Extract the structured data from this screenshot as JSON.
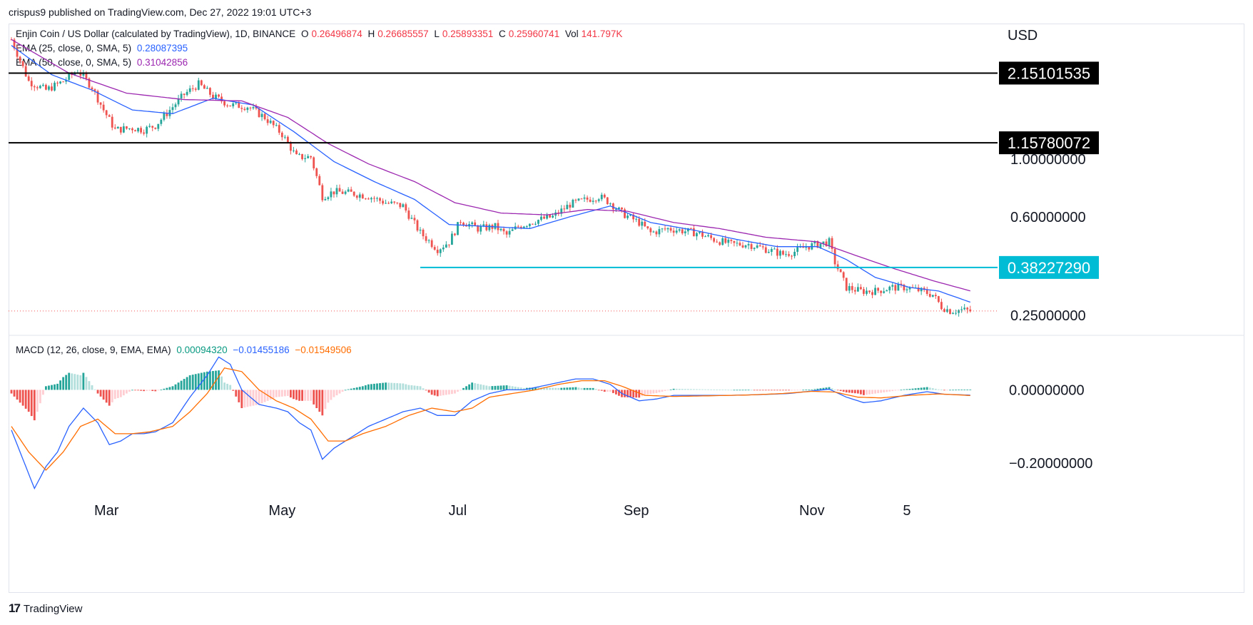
{
  "header": {
    "published": "crispus9 published on TradingView.com, Dec 27, 2022 19:01 UTC+3"
  },
  "footer": {
    "brand": "TradingView",
    "logo_icon": "tradingview-logo-icon"
  },
  "legend": {
    "symbol": "Enjin Coin / US Dollar (calculated by TradingView), 1D, BINANCE",
    "o_label": "O",
    "o_value": "0.26496874",
    "h_label": "H",
    "h_value": "0.26685557",
    "l_label": "L",
    "l_value": "0.25893351",
    "c_label": "C",
    "c_value": "0.25960741",
    "vol_label": "Vol",
    "vol_value": "141.797K",
    "ema25_label": "EMA (25, close, 0, SMA, 5)",
    "ema25_value": "0.28087395",
    "ema50_label": "EMA (50, close, 0, SMA, 5)",
    "ema50_value": "0.31042856",
    "macd_label": "MACD (12, 26, close, 9, EMA, EMA)",
    "macd_hist_value": "0.00094320",
    "macd_value": "−0.01455186",
    "macd_signal_value": "−0.01549506"
  },
  "colors": {
    "up": "#26a69a",
    "down": "#ef5350",
    "ema25": "#2962ff",
    "ema50": "#9c27b0",
    "macd": "#2962ff",
    "signal": "#ff6d00",
    "support": "#00bcd4"
  },
  "chart_data": [
    {
      "type": "candlestick",
      "title": "Enjin Coin / US Dollar (calculated by TradingView), 1D, BINANCE",
      "currency": "USD",
      "x_ticks": [
        "Mar",
        "May",
        "Jul",
        "Sep",
        "Nov",
        "5"
      ],
      "x_tick_days": [
        33,
        94,
        155,
        217,
        278,
        311
      ],
      "y_scale": "log",
      "y_ticks": [
        "0.25000000",
        "0.60000000",
        "1.00000000"
      ],
      "y_tick_values": [
        0.25,
        0.6,
        1.0
      ],
      "price_lines": [
        {
          "value": 2.15101535,
          "label": "2.15101535",
          "color": "#000000"
        },
        {
          "value": 1.15780072,
          "label": "1.15780072",
          "color": "#000000"
        },
        {
          "value": 0.3822729,
          "label": "0.38227290",
          "color": "#00bcd4",
          "start_day": 142
        }
      ],
      "current_price": 0.25960741,
      "ema25_last": 0.28087395,
      "ema50_last": 0.31042856,
      "close_anchors": [
        [
          0,
          2.9
        ],
        [
          6,
          2.0
        ],
        [
          12,
          1.85
        ],
        [
          18,
          2.0
        ],
        [
          23,
          2.2
        ],
        [
          28,
          1.9
        ],
        [
          32,
          1.55
        ],
        [
          36,
          1.3
        ],
        [
          42,
          1.32
        ],
        [
          46,
          1.3
        ],
        [
          50,
          1.35
        ],
        [
          55,
          1.55
        ],
        [
          60,
          1.78
        ],
        [
          65,
          1.95
        ],
        [
          70,
          1.75
        ],
        [
          76,
          1.62
        ],
        [
          82,
          1.6
        ],
        [
          88,
          1.45
        ],
        [
          94,
          1.25
        ],
        [
          99,
          1.02
        ],
        [
          104,
          1.02
        ],
        [
          108,
          0.72
        ],
        [
          112,
          0.75
        ],
        [
          118,
          0.74
        ],
        [
          124,
          0.72
        ],
        [
          130,
          0.68
        ],
        [
          136,
          0.66
        ],
        [
          142,
          0.52
        ],
        [
          148,
          0.45
        ],
        [
          152,
          0.48
        ],
        [
          156,
          0.58
        ],
        [
          162,
          0.54
        ],
        [
          168,
          0.55
        ],
        [
          172,
          0.51
        ],
        [
          176,
          0.55
        ],
        [
          182,
          0.58
        ],
        [
          188,
          0.6
        ],
        [
          194,
          0.67
        ],
        [
          200,
          0.7
        ],
        [
          204,
          0.72
        ],
        [
          208,
          0.68
        ],
        [
          212,
          0.62
        ],
        [
          218,
          0.57
        ],
        [
          222,
          0.52
        ],
        [
          228,
          0.54
        ],
        [
          233,
          0.53
        ],
        [
          238,
          0.52
        ],
        [
          244,
          0.49
        ],
        [
          250,
          0.47
        ],
        [
          256,
          0.47
        ],
        [
          262,
          0.45
        ],
        [
          268,
          0.43
        ],
        [
          272,
          0.44
        ],
        [
          276,
          0.46
        ],
        [
          280,
          0.47
        ],
        [
          284,
          0.48
        ],
        [
          286,
          0.4
        ],
        [
          290,
          0.32
        ],
        [
          295,
          0.31
        ],
        [
          300,
          0.31
        ],
        [
          306,
          0.32
        ],
        [
          311,
          0.32
        ],
        [
          316,
          0.31
        ],
        [
          320,
          0.3
        ],
        [
          323,
          0.27
        ],
        [
          326,
          0.26
        ],
        [
          330,
          0.262
        ],
        [
          333,
          0.2596
        ]
      ],
      "ema25_anchors": [
        [
          0,
          2.75
        ],
        [
          14,
          2.12
        ],
        [
          28,
          1.85
        ],
        [
          42,
          1.55
        ],
        [
          56,
          1.5
        ],
        [
          70,
          1.72
        ],
        [
          84,
          1.62
        ],
        [
          98,
          1.28
        ],
        [
          112,
          0.98
        ],
        [
          126,
          0.82
        ],
        [
          140,
          0.7
        ],
        [
          152,
          0.56
        ],
        [
          166,
          0.55
        ],
        [
          180,
          0.54
        ],
        [
          194,
          0.6
        ],
        [
          208,
          0.66
        ],
        [
          222,
          0.57
        ],
        [
          238,
          0.53
        ],
        [
          252,
          0.49
        ],
        [
          266,
          0.46
        ],
        [
          280,
          0.46
        ],
        [
          290,
          0.41
        ],
        [
          300,
          0.35
        ],
        [
          312,
          0.32
        ],
        [
          322,
          0.31
        ],
        [
          333,
          0.28087395
        ]
      ],
      "ema50_anchors": [
        [
          0,
          2.9
        ],
        [
          20,
          2.15
        ],
        [
          40,
          1.8
        ],
        [
          60,
          1.7
        ],
        [
          80,
          1.68
        ],
        [
          96,
          1.45
        ],
        [
          110,
          1.15
        ],
        [
          124,
          0.96
        ],
        [
          140,
          0.82
        ],
        [
          154,
          0.68
        ],
        [
          170,
          0.62
        ],
        [
          186,
          0.61
        ],
        [
          200,
          0.64
        ],
        [
          214,
          0.63
        ],
        [
          230,
          0.57
        ],
        [
          246,
          0.54
        ],
        [
          262,
          0.5
        ],
        [
          280,
          0.48
        ],
        [
          292,
          0.43
        ],
        [
          306,
          0.38
        ],
        [
          320,
          0.34
        ],
        [
          333,
          0.31042856
        ]
      ]
    },
    {
      "type": "histogram+line",
      "title": "MACD (12, 26, close, 9, EMA, EMA)",
      "y_ticks": [
        "0.00000000",
        "−0.20000000"
      ],
      "y_tick_values": [
        0.0,
        -0.2
      ],
      "macd_anchors": [
        [
          0,
          -0.11
        ],
        [
          4,
          -0.19
        ],
        [
          8,
          -0.27
        ],
        [
          12,
          -0.21
        ],
        [
          16,
          -0.17
        ],
        [
          20,
          -0.1
        ],
        [
          25,
          -0.05
        ],
        [
          30,
          -0.09
        ],
        [
          34,
          -0.15
        ],
        [
          38,
          -0.14
        ],
        [
          42,
          -0.12
        ],
        [
          46,
          -0.12
        ],
        [
          50,
          -0.115
        ],
        [
          56,
          -0.09
        ],
        [
          62,
          -0.02
        ],
        [
          68,
          0.04
        ],
        [
          72,
          0.09
        ],
        [
          76,
          0.07
        ],
        [
          80,
          0.0
        ],
        [
          86,
          -0.04
        ],
        [
          92,
          -0.05
        ],
        [
          96,
          -0.06
        ],
        [
          100,
          -0.09
        ],
        [
          104,
          -0.11
        ],
        [
          108,
          -0.19
        ],
        [
          112,
          -0.16
        ],
        [
          118,
          -0.13
        ],
        [
          124,
          -0.1
        ],
        [
          130,
          -0.08
        ],
        [
          136,
          -0.06
        ],
        [
          142,
          -0.05
        ],
        [
          148,
          -0.07
        ],
        [
          154,
          -0.07
        ],
        [
          160,
          -0.03
        ],
        [
          166,
          -0.01
        ],
        [
          172,
          0.0
        ],
        [
          178,
          0.0
        ],
        [
          184,
          0.01
        ],
        [
          190,
          0.02
        ],
        [
          196,
          0.03
        ],
        [
          202,
          0.03
        ],
        [
          208,
          0.015
        ],
        [
          212,
          -0.01
        ],
        [
          218,
          -0.03
        ],
        [
          224,
          -0.025
        ],
        [
          230,
          -0.015
        ],
        [
          240,
          -0.015
        ],
        [
          250,
          -0.015
        ],
        [
          260,
          -0.013
        ],
        [
          270,
          -0.01
        ],
        [
          278,
          -0.003
        ],
        [
          284,
          0.002
        ],
        [
          290,
          -0.02
        ],
        [
          296,
          -0.035
        ],
        [
          302,
          -0.03
        ],
        [
          310,
          -0.015
        ],
        [
          318,
          -0.005
        ],
        [
          324,
          -0.012
        ],
        [
          333,
          -0.01455186
        ]
      ],
      "signal_anchors": [
        [
          0,
          -0.1
        ],
        [
          6,
          -0.17
        ],
        [
          12,
          -0.22
        ],
        [
          18,
          -0.17
        ],
        [
          24,
          -0.1
        ],
        [
          30,
          -0.08
        ],
        [
          36,
          -0.12
        ],
        [
          42,
          -0.12
        ],
        [
          48,
          -0.115
        ],
        [
          56,
          -0.1
        ],
        [
          62,
          -0.06
        ],
        [
          68,
          -0.01
        ],
        [
          74,
          0.06
        ],
        [
          80,
          0.05
        ],
        [
          86,
          0.0
        ],
        [
          92,
          -0.03
        ],
        [
          98,
          -0.05
        ],
        [
          104,
          -0.08
        ],
        [
          110,
          -0.14
        ],
        [
          116,
          -0.14
        ],
        [
          122,
          -0.12
        ],
        [
          130,
          -0.1
        ],
        [
          138,
          -0.07
        ],
        [
          146,
          -0.05
        ],
        [
          154,
          -0.06
        ],
        [
          160,
          -0.05
        ],
        [
          166,
          -0.02
        ],
        [
          174,
          -0.01
        ],
        [
          182,
          0.0
        ],
        [
          190,
          0.015
        ],
        [
          198,
          0.025
        ],
        [
          206,
          0.025
        ],
        [
          212,
          0.01
        ],
        [
          220,
          -0.015
        ],
        [
          230,
          -0.018
        ],
        [
          244,
          -0.016
        ],
        [
          256,
          -0.014
        ],
        [
          268,
          -0.01
        ],
        [
          278,
          -0.004
        ],
        [
          286,
          -0.006
        ],
        [
          294,
          -0.02
        ],
        [
          302,
          -0.022
        ],
        [
          312,
          -0.015
        ],
        [
          322,
          -0.011
        ],
        [
          333,
          -0.01549506
        ]
      ]
    }
  ]
}
